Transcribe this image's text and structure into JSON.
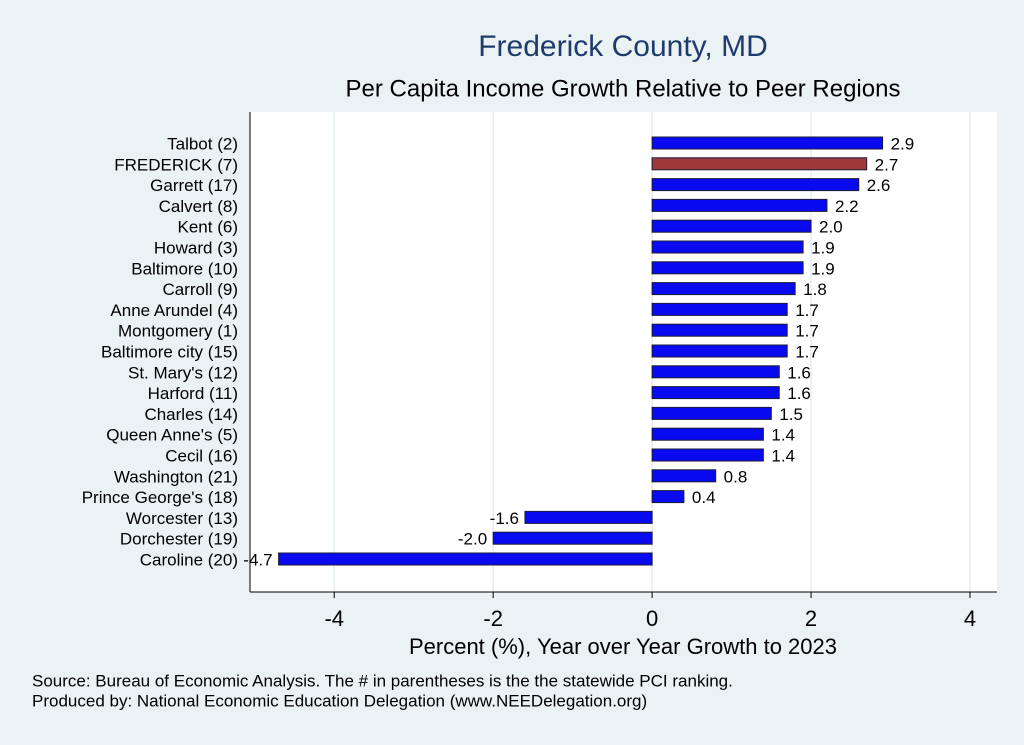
{
  "chart_data": {
    "type": "barh",
    "title": "Frederick County, MD",
    "subtitle": "Per Capita Income Growth Relative to Peer Regions",
    "x_label": "Percent (%), Year over Year Growth to 2023",
    "notes": [
      "Source: Bureau of Economic Analysis. The # in parentheses is the the statewide PCI ranking.",
      "Produced by: National Economic Education Delegation (www.NEEDelegation.org)"
    ],
    "categories": [
      "Talbot  (2)",
      "FREDERICK  (7)",
      "Garrett (17)",
      "Calvert  (8)",
      "Kent  (6)",
      "Howard  (3)",
      "Baltimore (10)",
      "Carroll  (9)",
      "Anne Arundel  (4)",
      "Montgomery  (1)",
      "Baltimore city (15)",
      "St. Mary's (12)",
      "Harford (11)",
      "Charles (14)",
      "Queen Anne's  (5)",
      "Cecil (16)",
      "Washington (21)",
      "Prince George's (18)",
      "Worcester (13)",
      "Dorchester (19)",
      "Caroline (20)"
    ],
    "values": [
      2.9,
      2.7,
      2.6,
      2.2,
      2,
      1.9,
      1.9,
      1.8,
      1.7,
      1.7,
      1.7,
      1.6,
      1.6,
      1.5,
      1.4,
      1.4,
      0.8,
      0.4,
      -1.6,
      -2,
      -4.7
    ],
    "value_labels": [
      "2.9",
      "2.7",
      "2.6",
      "2.2",
      "2.0",
      "1.9",
      "1.9",
      "1.8",
      "1.7",
      "1.7",
      "1.7",
      "1.6",
      "1.6",
      "1.5",
      "1.4",
      "1.4",
      "0.8",
      "0.4",
      "-1.6",
      "-2.0",
      "-4.7"
    ],
    "colors": [
      "#0a0af0",
      "#a03a3a",
      "#0a0af0",
      "#0a0af0",
      "#0a0af0",
      "#0a0af0",
      "#0a0af0",
      "#0a0af0",
      "#0a0af0",
      "#0a0af0",
      "#0a0af0",
      "#0a0af0",
      "#0a0af0",
      "#0a0af0",
      "#0a0af0",
      "#0a0af0",
      "#0a0af0",
      "#0a0af0",
      "#0a0af0",
      "#0a0af0",
      "#0a0af0"
    ],
    "xlim": [
      -5.06,
      4.34
    ],
    "xticks": [
      -4,
      -2,
      0,
      2,
      4
    ],
    "grid": true
  }
}
